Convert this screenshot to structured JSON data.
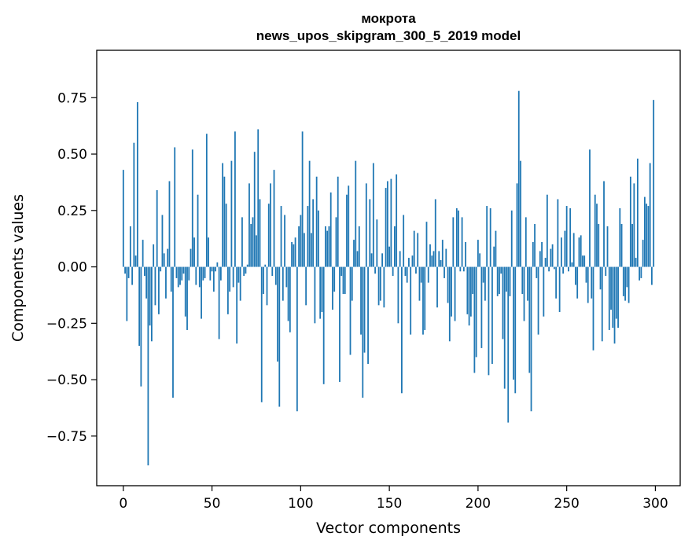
{
  "chart_data": {
    "type": "bar",
    "title_lines": [
      "мокрота",
      "news_upos_skipgram_300_5_2019 model"
    ],
    "xlabel": "Vector components",
    "ylabel": "Components values",
    "xlim": [
      -15,
      314
    ],
    "ylim": [
      -0.97,
      0.96
    ],
    "xticks": [
      0,
      50,
      100,
      150,
      200,
      250,
      300
    ],
    "yticks": [
      -0.75,
      -0.5,
      -0.25,
      0.0,
      0.25,
      0.5,
      0.75
    ],
    "xtick_labels": [
      "0",
      "50",
      "100",
      "150",
      "200",
      "250",
      "300"
    ],
    "ytick_labels": [
      "−0.75",
      "−0.50",
      "−0.25",
      "0.00",
      "0.25",
      "0.50",
      "0.75"
    ],
    "bar_color": "#1f77b4",
    "grid": false,
    "legend": "none",
    "values": [
      0.43,
      -0.03,
      -0.24,
      -0.05,
      0.18,
      -0.08,
      0.55,
      0.05,
      0.73,
      -0.35,
      -0.53,
      0.12,
      -0.04,
      -0.14,
      -0.88,
      -0.26,
      -0.33,
      0.1,
      -0.17,
      0.34,
      -0.21,
      -0.02,
      0.23,
      0.06,
      -0.14,
      0.08,
      0.38,
      -0.11,
      -0.58,
      0.53,
      -0.05,
      -0.09,
      -0.08,
      -0.06,
      -0.03,
      -0.22,
      -0.28,
      -0.06,
      0.08,
      0.52,
      0.13,
      -0.08,
      0.32,
      -0.09,
      -0.23,
      -0.06,
      -0.05,
      0.59,
      0.13,
      -0.06,
      -0.02,
      -0.11,
      -0.02,
      0.02,
      -0.32,
      -0.06,
      0.46,
      0.4,
      0.28,
      -0.21,
      -0.11,
      0.47,
      -0.09,
      0.6,
      -0.34,
      -0.07,
      -0.15,
      0.22,
      -0.04,
      -0.03,
      0.01,
      0.37,
      0.19,
      0.22,
      0.51,
      0.14,
      0.61,
      0.3,
      -0.6,
      -0.12,
      0.01,
      -0.17,
      0.28,
      0.37,
      -0.04,
      0.43,
      -0.08,
      -0.42,
      -0.62,
      0.27,
      -0.15,
      0.23,
      -0.09,
      -0.24,
      -0.29,
      0.11,
      0.1,
      0.13,
      -0.64,
      0.18,
      0.23,
      0.6,
      0.15,
      -0.17,
      0.27,
      0.47,
      0.15,
      0.3,
      -0.25,
      0.4,
      0.25,
      -0.23,
      -0.2,
      -0.52,
      0.18,
      0.16,
      0.18,
      0.33,
      -0.19,
      -0.11,
      0.22,
      0.4,
      -0.51,
      -0.04,
      -0.12,
      -0.12,
      0.32,
      0.36,
      -0.39,
      -0.15,
      0.12,
      0.47,
      0.07,
      0.18,
      -0.3,
      -0.58,
      -0.38,
      0.37,
      -0.43,
      0.3,
      0.06,
      0.46,
      -0.03,
      0.21,
      -0.17,
      -0.15,
      0.06,
      -0.18,
      0.35,
      0.38,
      0.09,
      0.39,
      -0.04,
      0.18,
      0.41,
      -0.25,
      0.07,
      -0.56,
      0.23,
      -0.04,
      -0.07,
      0.04,
      -0.3,
      0.05,
      0.16,
      -0.03,
      0.15,
      -0.15,
      -0.07,
      -0.3,
      -0.28,
      0.2,
      -0.07,
      0.1,
      0.05,
      0.07,
      0.3,
      -0.18,
      0.07,
      0.03,
      0.12,
      -0.05,
      0.08,
      -0.16,
      -0.33,
      -0.22,
      0.22,
      -0.24,
      0.26,
      0.25,
      -0.02,
      0.22,
      -0.02,
      0.11,
      -0.21,
      -0.26,
      -0.22,
      -0.12,
      -0.47,
      -0.4,
      0.12,
      0.06,
      -0.36,
      -0.07,
      -0.15,
      0.27,
      -0.48,
      0.26,
      -0.43,
      0.09,
      0.16,
      -0.13,
      -0.12,
      -0.03,
      -0.32,
      -0.54,
      -0.11,
      -0.69,
      -0.13,
      0.25,
      -0.5,
      -0.56,
      0.37,
      0.78,
      0.47,
      -0.12,
      -0.24,
      0.22,
      -0.15,
      -0.47,
      -0.64,
      0.11,
      0.19,
      -0.05,
      -0.3,
      0.07,
      0.11,
      -0.22,
      0.04,
      0.32,
      -0.02,
      0.08,
      0.1,
      -0.01,
      -0.14,
      0.3,
      -0.2,
      0.13,
      -0.03,
      0.16,
      0.27,
      -0.02,
      0.26,
      0.02,
      0.15,
      -0.08,
      -0.14,
      0.13,
      0.14,
      0.05,
      0.05,
      -0.07,
      -0.16,
      0.52,
      -0.14,
      -0.37,
      0.32,
      0.28,
      0.19,
      -0.1,
      -0.33,
      0.38,
      -0.04,
      0.18,
      -0.28,
      -0.19,
      -0.27,
      -0.34,
      -0.23,
      -0.27,
      0.26,
      0.19,
      -0.13,
      -0.15,
      -0.09,
      -0.16,
      0.4,
      0.19,
      0.37,
      0.04,
      0.48,
      -0.06,
      -0.05,
      0.12,
      0.31,
      0.28,
      0.27,
      0.46,
      -0.08,
      0.74
    ]
  }
}
